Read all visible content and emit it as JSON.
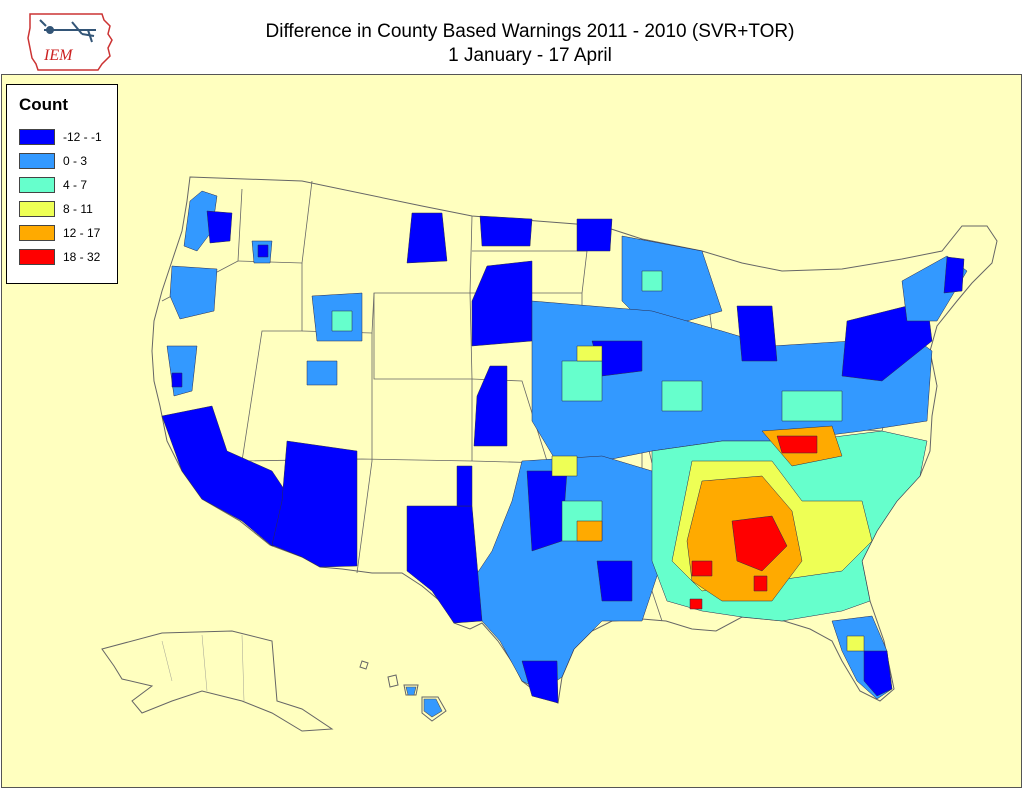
{
  "header": {
    "logo_text": "IEM",
    "title_line1": "Difference in County Based Warnings 2011 - 2010 (SVR+TOR)",
    "title_line2": "1 January - 17 April"
  },
  "legend": {
    "title": "Count",
    "items": [
      {
        "label": "-12 - -1",
        "color": "#0000ff"
      },
      {
        "label": "0 - 3",
        "color": "#3399ff"
      },
      {
        "label": "4 - 7",
        "color": "#66ffcc"
      },
      {
        "label": "8 - 11",
        "color": "#eeff55"
      },
      {
        "label": "12 - 17",
        "color": "#ffaa00"
      },
      {
        "label": "18 - 32",
        "color": "#ff0000"
      }
    ]
  },
  "colors": {
    "background": "#ffffbf",
    "land_no_data": "#ffffbf",
    "border": "#666666"
  }
}
